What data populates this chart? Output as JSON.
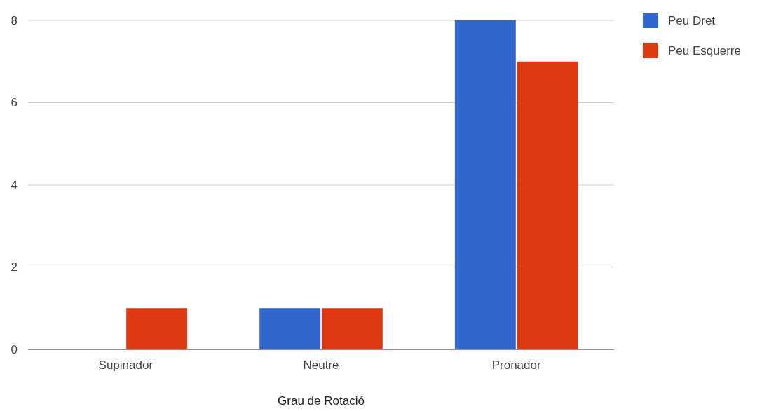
{
  "chart_data": {
    "type": "bar",
    "xlabel": "Grau de Rotació",
    "categories": [
      "Supinador",
      "Neutre",
      "Pronador"
    ],
    "series": [
      {
        "name": "Peu Dret",
        "color": "#3366cc",
        "values": [
          0,
          1,
          8
        ]
      },
      {
        "name": "Peu Esquerre",
        "color": "#dc3912",
        "values": [
          1,
          1,
          7
        ]
      }
    ],
    "ylim": [
      0,
      8
    ],
    "yticks": [
      0,
      2,
      4,
      6,
      8
    ],
    "grid": "y",
    "legend": "top right"
  }
}
